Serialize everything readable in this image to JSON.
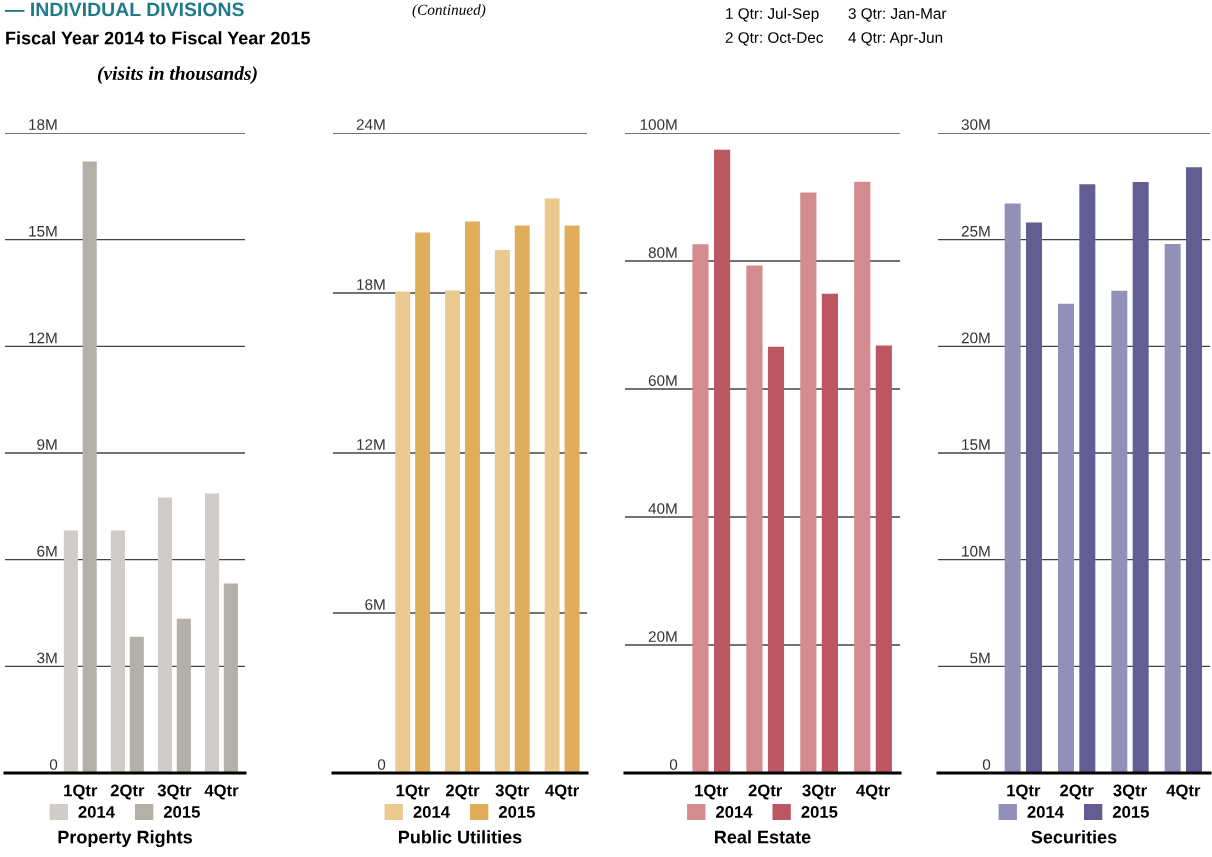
{
  "chart_data": [
    {
      "type": "bar",
      "title": "— INDIVIDUAL DIVISIONS",
      "subtitle": "Fiscal Year 2014 to Fiscal Year 2015",
      "annotations": [
        "(Continued)",
        "(visits in thousands)",
        "1 Qtr: Jul-Sep",
        "2 Qtr: Oct-Dec",
        "3 Qtr: Jan-Mar",
        "4 Qtr: Apr-Jun"
      ],
      "xlabel": "Property Rights",
      "categories": [
        "1Qtr",
        "2Qtr",
        "3Qtr",
        "4Qtr"
      ],
      "ylim": [
        0,
        18
      ],
      "yticks": [
        {
          "value": 0,
          "label": "0"
        },
        {
          "value": 3,
          "label": "3M"
        },
        {
          "value": 6,
          "label": "6M"
        },
        {
          "value": 9,
          "label": "9M"
        },
        {
          "value": 12,
          "label": "12M"
        },
        {
          "value": 15,
          "label": "15M"
        },
        {
          "value": 18,
          "label": "18M"
        }
      ],
      "grid": "y",
      "legend": "bottom",
      "series": [
        {
          "name": "2014",
          "color": "#d0cdc8",
          "values": [
            6.82,
            6.82,
            7.75,
            7.86
          ]
        },
        {
          "name": "2015",
          "color": "#b3b0a8",
          "values": [
            17.2,
            3.83,
            4.34,
            5.33
          ]
        }
      ]
    },
    {
      "type": "bar",
      "xlabel": "Public Utilities",
      "categories": [
        "1Qtr",
        "2Qtr",
        "3Qtr",
        "4Qtr"
      ],
      "ylim": [
        0,
        24
      ],
      "yticks": [
        {
          "value": 0,
          "label": "0"
        },
        {
          "value": 6,
          "label": "6M"
        },
        {
          "value": 12,
          "label": "12M"
        },
        {
          "value": 18,
          "label": "18M"
        },
        {
          "value": 24,
          "label": "24M"
        }
      ],
      "grid": "y",
      "legend": "bottom",
      "series": [
        {
          "name": "2014",
          "color": "#ebca92",
          "values": [
            18.06,
            18.09,
            19.61,
            21.54
          ]
        },
        {
          "name": "2015",
          "color": "#e0ae5a",
          "values": [
            20.27,
            20.68,
            20.53,
            20.53
          ]
        }
      ]
    },
    {
      "type": "bar",
      "xlabel": "Real Estate",
      "categories": [
        "1Qtr",
        "2Qtr",
        "3Qtr",
        "4Qtr"
      ],
      "ylim": [
        0,
        100
      ],
      "yticks": [
        {
          "value": 0,
          "label": "0"
        },
        {
          "value": 20,
          "label": "20M"
        },
        {
          "value": 40,
          "label": "40M"
        },
        {
          "value": 60,
          "label": "60M"
        },
        {
          "value": 80,
          "label": "80M"
        },
        {
          "value": 100,
          "label": "100M"
        }
      ],
      "grid": "y",
      "legend": "bottom",
      "series": [
        {
          "name": "2014",
          "color": "#d48b8f",
          "values": [
            82.6,
            79.3,
            90.7,
            92.4
          ]
        },
        {
          "name": "2015",
          "color": "#bd5663",
          "values": [
            97.4,
            66.6,
            74.9,
            66.8
          ]
        }
      ]
    },
    {
      "type": "bar",
      "xlabel": "Securities",
      "categories": [
        "1Qtr",
        "2Qtr",
        "3Qtr",
        "4Qtr"
      ],
      "ylim": [
        0,
        30
      ],
      "yticks": [
        {
          "value": 0,
          "label": "0"
        },
        {
          "value": 5,
          "label": "5M"
        },
        {
          "value": 10,
          "label": "10M"
        },
        {
          "value": 15,
          "label": "15M"
        },
        {
          "value": 20,
          "label": "20M"
        },
        {
          "value": 25,
          "label": "25M"
        },
        {
          "value": 30,
          "label": "30M"
        }
      ],
      "grid": "y",
      "legend": "bottom",
      "series": [
        {
          "name": "2014",
          "color": "#9290b8",
          "values": [
            26.7,
            22.0,
            22.6,
            24.8
          ]
        },
        {
          "name": "2015",
          "color": "#625d93",
          "values": [
            25.8,
            27.6,
            27.7,
            28.4
          ]
        }
      ]
    }
  ]
}
